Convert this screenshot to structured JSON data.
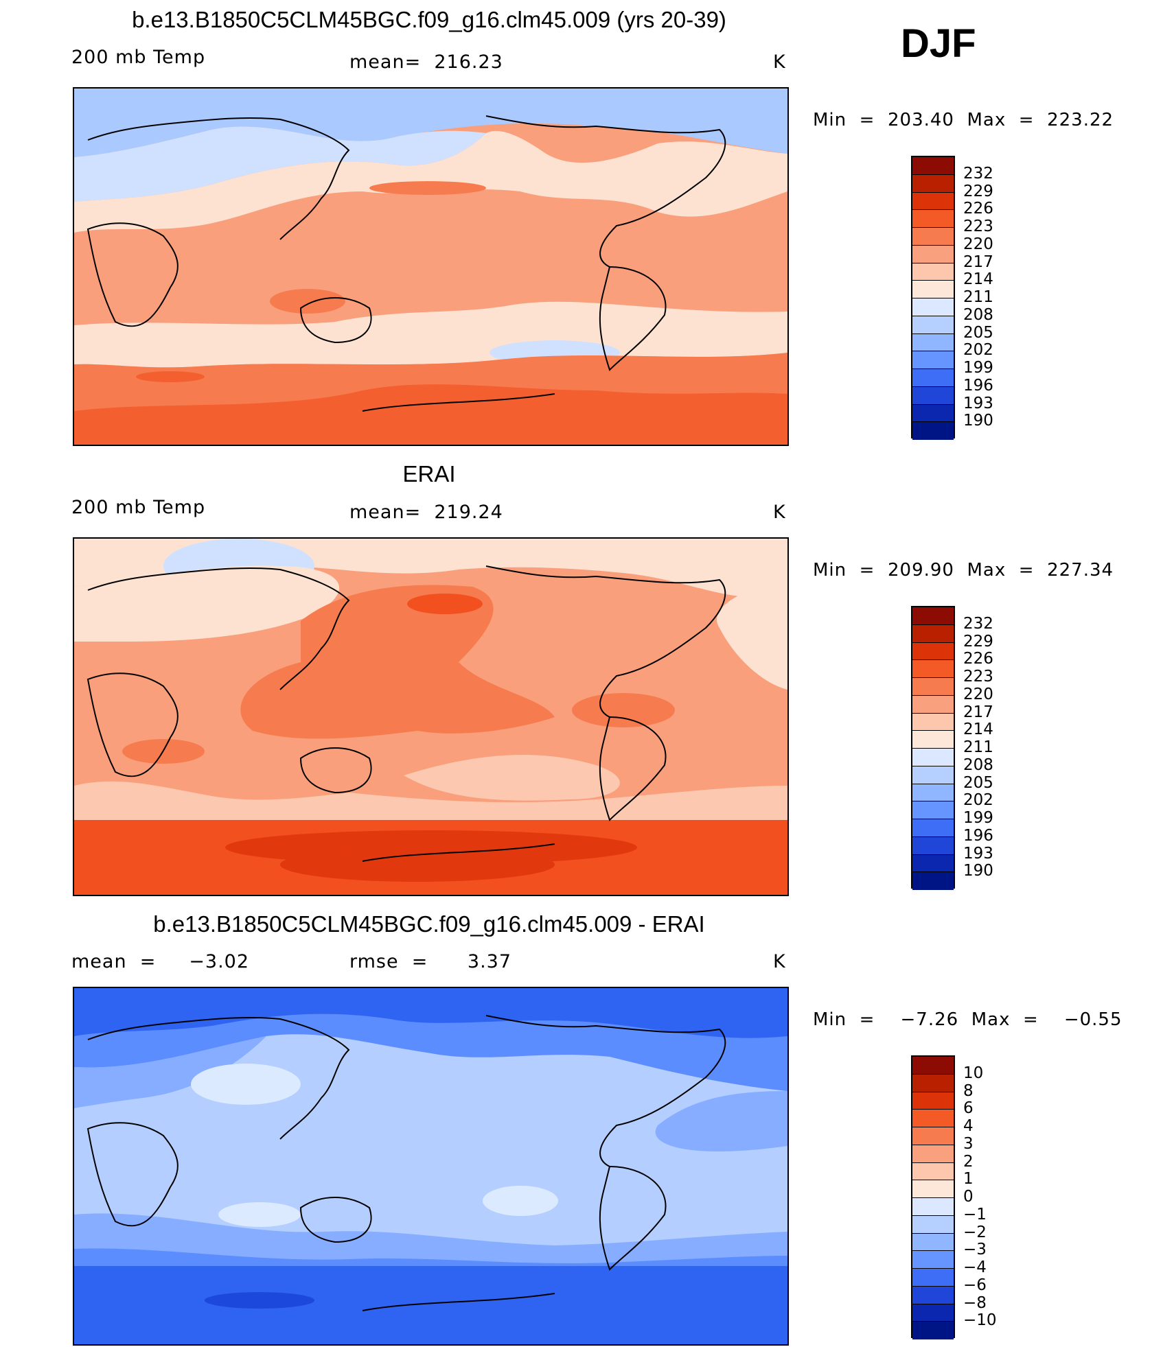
{
  "season": "DJF",
  "panels": [
    {
      "id": "model",
      "title": "b.e13.B1850C5CLM45BGC.f09_g16.clm45.009 (yrs 20-39)",
      "variable": "200 mb Temp",
      "stat": "mean=  216.23",
      "units": "K",
      "minmax": "Min  =  203.40  Max  =  223.22",
      "colorbar_labels": [
        "232",
        "229",
        "226",
        "223",
        "220",
        "217",
        "214",
        "211",
        "208",
        "205",
        "202",
        "199",
        "196",
        "193",
        "190"
      ],
      "colors": {
        "base": "#fa9f7c",
        "cold_north": "#aac9ff",
        "mid_north": "#cfe1ff",
        "cream": "#fde2d2",
        "warm_band": "#f67c4f",
        "warm_south": "#f45f30"
      }
    },
    {
      "id": "obs",
      "title": "ERAI",
      "variable": "200 mb Temp",
      "stat": "mean=  219.24",
      "units": "K",
      "minmax": "Min  =  209.90  Max  =  227.34",
      "colorbar_labels": [
        "232",
        "229",
        "226",
        "223",
        "220",
        "217",
        "214",
        "211",
        "208",
        "205",
        "202",
        "199",
        "196",
        "193",
        "190"
      ],
      "colors": {
        "base": "#fa9f7c",
        "cold_north": "#cfe1ff",
        "cream": "#fde2d2",
        "pale": "#fcc8b0",
        "warm_band": "#f67c4f",
        "warm_south": "#f2501f",
        "hot": "#e2380d"
      }
    },
    {
      "id": "diff",
      "title": "b.e13.B1850C5CLM45BGC.f09_g16.clm45.009 - ERAI",
      "variable": "mean  =     −3.02",
      "stat": "rmse  =      3.37",
      "units": "K",
      "minmax": "Min  =    −7.26  Max  =    −0.55",
      "colorbar_labels": [
        "10",
        "8",
        "6",
        "4",
        "3",
        "2",
        "1",
        "0",
        "−1",
        "−2",
        "−3",
        "−4",
        "−6",
        "−8",
        "−10"
      ],
      "colors": {
        "base": "#b3ceff",
        "light": "#dceaff",
        "mid": "#86adff",
        "strong": "#5b8dff",
        "deep": "#2f63f2",
        "deepest": "#1d48dc"
      }
    }
  ],
  "colorbar_colors": [
    "#8c0c04",
    "#b82000",
    "#dd3308",
    "#f45a26",
    "#f67c4f",
    "#f9a07f",
    "#fcc7ad",
    "#fde7d8",
    "#dbe8ff",
    "#b5d0ff",
    "#8fb6ff",
    "#6695ff",
    "#3e6ef5",
    "#1f45d9",
    "#0b27b0",
    "#001585"
  ]
}
